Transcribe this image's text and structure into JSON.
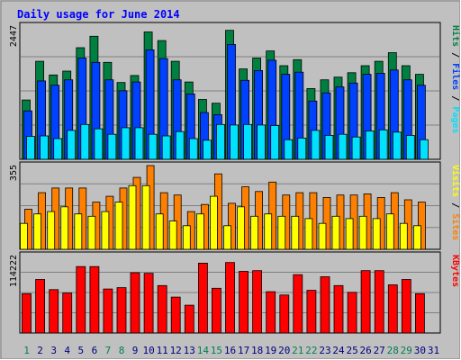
{
  "title": "Daily usage for June 2014",
  "colors": {
    "frame_bg": "#c0c0c0",
    "title": "#0000ff",
    "hits": "#008040",
    "files": "#0040ff",
    "pages": "#00e0ff",
    "visits": "#ffff00",
    "sites": "#ff8000",
    "kbytes": "#ff0000",
    "weekend_day": "#00804f",
    "weekday_day": "#000080"
  },
  "panels": {
    "top": {
      "max_label": "2447",
      "legend": [
        {
          "text": "Pages",
          "color": "#00e0ff"
        },
        {
          "text": " / ",
          "color": "#000000"
        },
        {
          "text": "Files",
          "color": "#0040ff"
        },
        {
          "text": " / ",
          "color": "#000000"
        },
        {
          "text": "Hits",
          "color": "#008040"
        }
      ]
    },
    "middle": {
      "max_label": "355",
      "legend": [
        {
          "text": "Sites",
          "color": "#ff8000"
        },
        {
          "text": " / ",
          "color": "#000000"
        },
        {
          "text": "Visits",
          "color": "#ffff00"
        }
      ]
    },
    "bottom": {
      "max_label": "114222",
      "legend": [
        {
          "text": "KBytes",
          "color": "#ff0000"
        }
      ]
    }
  },
  "chart_data": {
    "type": "bar",
    "title": "Daily usage for June 2014",
    "categories": [
      "1",
      "2",
      "3",
      "4",
      "5",
      "6",
      "7",
      "8",
      "9",
      "10",
      "11",
      "12",
      "13",
      "14",
      "15",
      "16",
      "17",
      "18",
      "19",
      "20",
      "21",
      "22",
      "23",
      "24",
      "25",
      "26",
      "27",
      "28",
      "29",
      "30",
      "31"
    ],
    "weekend_days": [
      "1",
      "7",
      "8",
      "14",
      "15",
      "21",
      "22",
      "28",
      "29"
    ],
    "panels": [
      {
        "name": "top",
        "ylim": [
          0,
          2447
        ],
        "series": [
          {
            "name": "Hits",
            "values": [
              1090,
              1800,
              1550,
              1620,
              2050,
              2260,
              1780,
              1410,
              1540,
              2340,
              2180,
              1800,
              1420,
              1100,
              1030,
              2370,
              1660,
              1860,
              1990,
              1720,
              1830,
              1300,
              1460,
              1510,
              1590,
              1720,
              1800,
              1960,
              1720,
              1560,
              0
            ]
          },
          {
            "name": "Files",
            "values": [
              890,
              1440,
              1360,
              1460,
              1860,
              1780,
              1460,
              1260,
              1420,
              2010,
              1850,
              1460,
              1200,
              860,
              820,
              2110,
              1450,
              1630,
              1820,
              1560,
              1600,
              1070,
              1220,
              1330,
              1400,
              1560,
              1580,
              1640,
              1460,
              1360,
              0
            ]
          },
          {
            "name": "Pages",
            "values": [
              420,
              430,
              380,
              530,
              640,
              560,
              460,
              580,
              580,
              460,
              430,
              510,
              380,
              350,
              640,
              630,
              640,
              630,
              620,
              360,
              390,
              530,
              440,
              460,
              410,
              520,
              540,
              500,
              440,
              360,
              0
            ]
          }
        ]
      },
      {
        "name": "middle",
        "ylim": [
          0,
          355
        ],
        "series": [
          {
            "name": "Sites",
            "values": [
              170,
              240,
              260,
              260,
              260,
              200,
              225,
              260,
              305,
              355,
              240,
              230,
              160,
              190,
              320,
              195,
              265,
              245,
              285,
              230,
              240,
              240,
              220,
              230,
              230,
              235,
              220,
              240,
              210,
              200,
              0
            ]
          },
          {
            "name": "Visits",
            "values": [
              110,
              150,
              160,
              180,
              150,
              140,
              160,
              200,
              270,
              270,
              150,
              120,
              100,
              150,
              225,
              100,
              180,
              140,
              150,
              140,
              140,
              130,
              110,
              140,
              130,
              140,
              130,
              150,
              110,
              100,
              0
            ]
          }
        ]
      },
      {
        "name": "bottom",
        "ylabel": "KBytes",
        "ylim": [
          0,
          114222
        ],
        "series": [
          {
            "name": "KBytes",
            "values": [
              58000,
              79000,
              64000,
              59000,
              98000,
              98000,
              65000,
              67000,
              89000,
              88000,
              70000,
              53000,
              41000,
              103000,
              66000,
              104000,
              91000,
              92000,
              61000,
              56000,
              86000,
              63000,
              83000,
              70000,
              60000,
              92000,
              92000,
              71000,
              79000,
              58000,
              0
            ]
          }
        ]
      }
    ]
  }
}
